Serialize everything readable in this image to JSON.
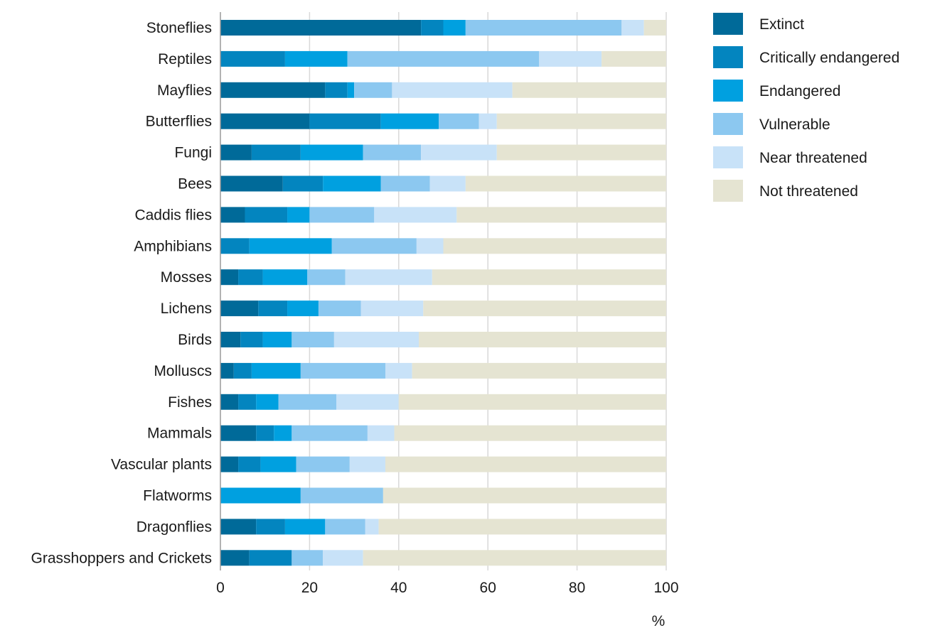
{
  "chart_data": {
    "type": "bar",
    "orientation": "horizontal",
    "stacked": true,
    "categories": [
      "Stoneflies",
      "Reptiles",
      "Mayflies",
      "Butterflies",
      "Fungi",
      "Bees",
      "Caddis flies",
      "Amphibians",
      "Mosses",
      "Lichens",
      "Birds",
      "Molluscs",
      "Fishes",
      "Mammals",
      "Vascular plants",
      "Flatworms",
      "Dragonflies",
      "Grasshoppers and Crickets"
    ],
    "series": [
      {
        "name": "Extinct",
        "color": "#006a99",
        "values": [
          45,
          0,
          23.5,
          20,
          7,
          14,
          5.5,
          0,
          4,
          8.5,
          4.5,
          3,
          4,
          8,
          4,
          0,
          8,
          6.5
        ]
      },
      {
        "name": "Critically endangered",
        "color": "#0385bf",
        "values": [
          5,
          14.5,
          5,
          16,
          11,
          9,
          9.5,
          6.5,
          5.5,
          6.5,
          5,
          4,
          4,
          4,
          5,
          0,
          6.5,
          9.5
        ]
      },
      {
        "name": "Endangered",
        "color": "#00a0e0",
        "values": [
          5,
          14,
          1.5,
          13,
          14,
          13,
          5,
          18.5,
          10,
          7,
          6.5,
          11,
          5,
          4,
          8,
          18,
          9,
          0
        ]
      },
      {
        "name": "Vulnerable",
        "color": "#8cc8f0",
        "values": [
          35,
          43,
          8.5,
          9,
          13,
          11,
          14.5,
          19,
          8.5,
          9.5,
          9.5,
          19,
          13,
          17,
          12,
          18.5,
          9,
          7
        ]
      },
      {
        "name": "Near threatened",
        "color": "#c8e2f8",
        "values": [
          5,
          14,
          27,
          4,
          17,
          8,
          18.5,
          6,
          19.5,
          14,
          19,
          6,
          14,
          6,
          8,
          0,
          3,
          9
        ]
      },
      {
        "name": "Not threatened",
        "color": "#e5e4d2",
        "values": [
          5,
          14.5,
          34.5,
          38,
          38,
          45,
          47,
          50,
          52.5,
          54.5,
          55.5,
          57,
          60,
          61,
          63,
          63.5,
          64.5,
          68
        ]
      }
    ],
    "xlabel": "%",
    "xlim": [
      0,
      100
    ],
    "xticks": [
      0,
      20,
      40,
      60,
      80,
      100
    ],
    "grid": "vertical",
    "legend_position": "right"
  }
}
